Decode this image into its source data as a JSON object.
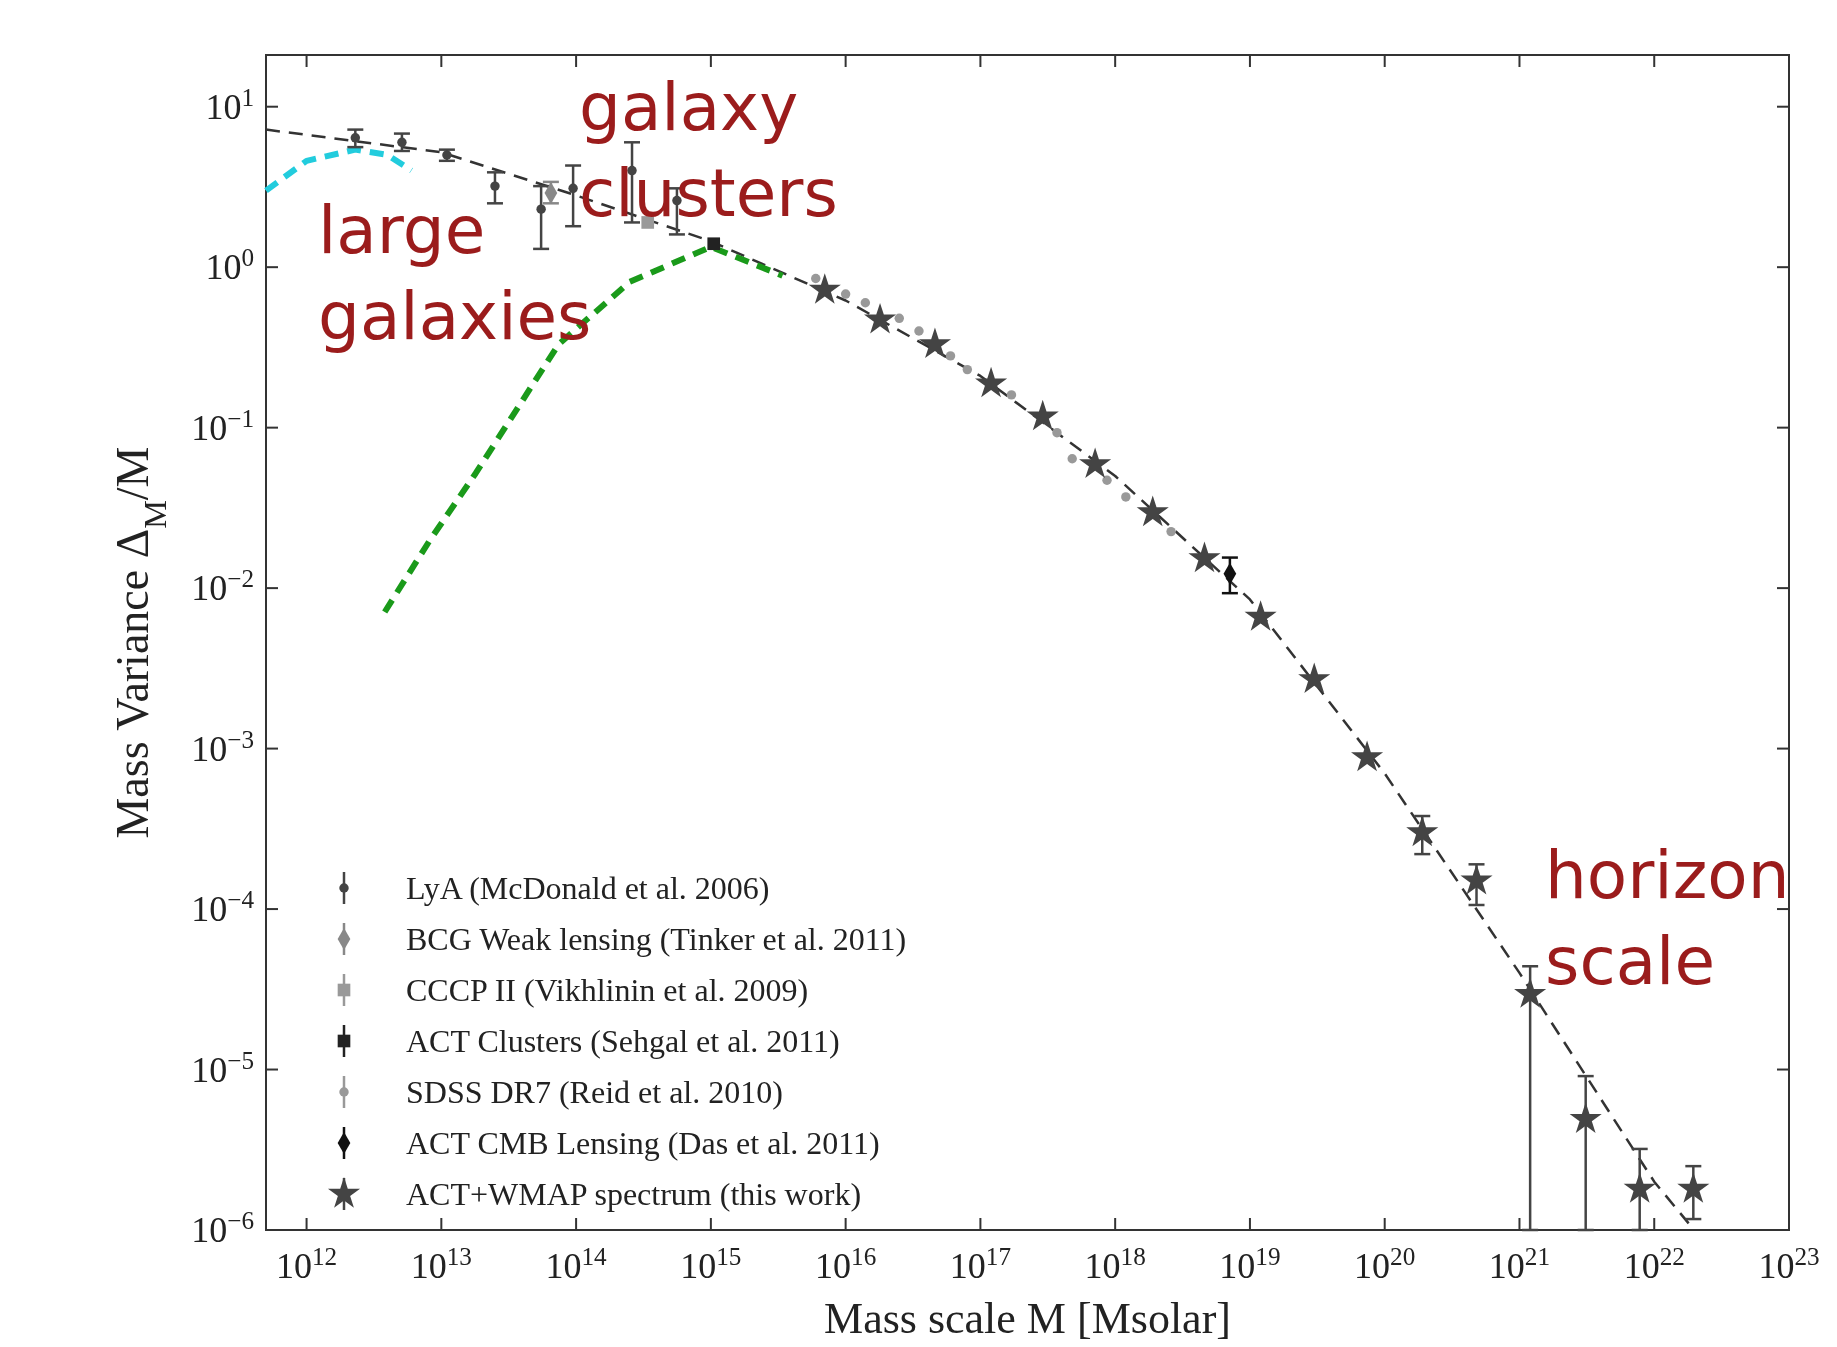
{
  "chart_data": {
    "type": "scatter",
    "xlabel": "Mass scale M [Msolar]",
    "ylabel": "Mass Variance Δ$_{M}$/M",
    "log": "xy",
    "grid": false,
    "legend": "bottom left",
    "xlim": [
      500000000000.0,
      1e+23
    ],
    "ylim": [
      1e-06,
      21
    ],
    "xticks": [
      {
        "value": 1000000000000.0,
        "label": "10$^{12}$"
      },
      {
        "value": 10000000000000.0,
        "label": "10$^{13}$"
      },
      {
        "value": 100000000000000.0,
        "label": "10$^{14}$"
      },
      {
        "value": 1000000000000000.0,
        "label": "10$^{15}$"
      },
      {
        "value": 1e+16,
        "label": "10$^{16}$"
      },
      {
        "value": 1e+17,
        "label": "10$^{17}$"
      },
      {
        "value": 1e+18,
        "label": "10$^{18}$"
      },
      {
        "value": 1e+19,
        "label": "10$^{19}$"
      },
      {
        "value": 1e+20,
        "label": "10$^{20}$"
      },
      {
        "value": 1e+21,
        "label": "10$^{21}$"
      },
      {
        "value": 1e+22,
        "label": "10$^{22}$"
      },
      {
        "value": 1e+23,
        "label": "10$^{23}$"
      }
    ],
    "yticks": [
      {
        "value": 1e-06,
        "label": "10$^{−6}$"
      },
      {
        "value": 1e-05,
        "label": "10$^{−5}$"
      },
      {
        "value": 0.0001,
        "label": "10$^{−4}$"
      },
      {
        "value": 0.001,
        "label": "10$^{−3}$"
      },
      {
        "value": 0.01,
        "label": "10$^{−2}$"
      },
      {
        "value": 0.1,
        "label": "10$^{−1}$"
      },
      {
        "value": 1,
        "label": "10$^{0}$"
      },
      {
        "value": 10,
        "label": "10$^{1}$"
      }
    ],
    "series": [
      {
        "type": "line",
        "color": "#333333",
        "line_style": "dashed",
        "marker": "none",
        "x": [
          500000000000.0,
          10000000000000.0,
          100000000000000.0,
          1000000000000000.0,
          1e+16,
          1e+17,
          1e+18,
          1e+19,
          1e+20,
          1e+21,
          1e+22,
          1.8e+22
        ],
        "values": [
          7.2,
          5.2,
          2.8,
          1.45,
          0.62,
          0.21,
          0.05,
          0.0085,
          0.0007,
          4e-05,
          2e-06,
          1.1e-06
        ]
      },
      {
        "type": "line",
        "color": "#22ccdd",
        "line_style": "dashed",
        "marker": "none",
        "x": [
          500000000000.0,
          1000000000000.0,
          2300000000000.0,
          4000000000000.0,
          6000000000000.0
        ],
        "values": [
          3.0,
          4.6,
          5.4,
          5.0,
          4.0
        ]
      },
      {
        "type": "line",
        "color": "#1a9a1a",
        "line_style": "dashed",
        "marker": "none",
        "x": [
          3800000000000.0,
          8100000000000.0,
          18000000000000.0,
          74000000000000.0,
          250000000000000.0,
          1000000000000000.0,
          3400000000000000.0
        ],
        "values": [
          0.0071,
          0.0195,
          0.052,
          0.33,
          0.81,
          1.34,
          0.885
        ]
      },
      {
        "name": "LyA (McDonald et al. 2006)",
        "color": "#444444",
        "marker": "circle",
        "x": [
          2300000000000.0,
          5100000000000.0,
          11000000000000.0,
          25000000000000.0,
          55000000000000.0,
          95000000000000.0,
          260000000000000.0,
          560000000000000.0
        ],
        "values": [
          6.4,
          6.0,
          5.0,
          3.2,
          2.3,
          3.1,
          4.0,
          2.6
        ],
        "errors": [
          [
            5.6,
            7.2
          ],
          [
            5.3,
            6.8
          ],
          [
            4.6,
            5.4
          ],
          [
            2.5,
            3.9
          ],
          [
            1.3,
            3.2
          ],
          [
            1.8,
            4.3
          ],
          [
            1.9,
            6.0
          ],
          [
            1.6,
            3.1
          ]
        ]
      },
      {
        "name": "BCG Weak lensing (Tinker et al. 2011)",
        "color": "#888888",
        "marker": "diamond",
        "x": [
          65000000000000.0
        ],
        "values": [
          2.9
        ],
        "errors": [
          [
            2.5,
            3.4
          ]
        ]
      },
      {
        "name": "CCCP II (Vikhlinin et al. 2009)",
        "color": "#999999",
        "marker": "square",
        "x": [
          340000000000000.0
        ],
        "values": [
          1.9
        ],
        "errors": [
          null
        ]
      },
      {
        "name": "ACT Clusters (Sehgal et al. 2011)",
        "color": "#222222",
        "marker": "square",
        "x": [
          1050000000000000.0
        ],
        "values": [
          1.4
        ],
        "errors": [
          null
        ]
      },
      {
        "name": "SDSS DR7 (Reid et al. 2010)",
        "color": "#999999",
        "marker": "circle",
        "x": [
          6000000000000000.0,
          1e+16,
          1.4e+16,
          2.5e+16,
          3.5e+16,
          6e+16,
          8e+16,
          1.7e+17,
          3.7e+17,
          4.8e+17,
          8.7e+17,
          1.2e+18,
          2.6e+18
        ],
        "values": [
          0.85,
          0.68,
          0.6,
          0.48,
          0.4,
          0.28,
          0.23,
          0.16,
          0.093,
          0.064,
          0.047,
          0.037,
          0.0225
        ],
        "errors": [
          null,
          null,
          null,
          null,
          null,
          null,
          null,
          null,
          null,
          null,
          null,
          null,
          null
        ]
      },
      {
        "name": "ACT CMB Lensing (Das et al. 2011)",
        "color": "#111111",
        "marker": "diamond",
        "x": [
          7.1e+18
        ],
        "values": [
          0.0123
        ],
        "errors": [
          [
            0.0093,
            0.0155
          ]
        ]
      },
      {
        "name": "ACT+WMAP spectrum (this work)",
        "color": "#444444",
        "marker": "star",
        "x": [
          7000000000000000.0,
          1.8e+16,
          4.6e+16,
          1.2e+17,
          2.9e+17,
          7.1e+17,
          1.9e+18,
          4.6e+18,
          1.2e+19,
          3e+19,
          7.4e+19,
          1.9e+20,
          4.8e+20,
          1.2e+21,
          3.1e+21,
          7.8e+21,
          1.95e+22
        ],
        "values": [
          0.72,
          0.47,
          0.33,
          0.188,
          0.117,
          0.059,
          0.0296,
          0.0153,
          0.0066,
          0.0027,
          0.00088,
          0.0003,
          0.00015,
          2.95e-05,
          4.9e-06,
          1.8e-06,
          1.8e-06
        ],
        "errors": [
          null,
          null,
          null,
          null,
          null,
          null,
          null,
          null,
          null,
          null,
          null,
          [
            0.00022,
            0.00038
          ],
          [
            0.000106,
            0.00019
          ],
          [
            1e-06,
            4.4e-05
          ],
          [
            1e-06,
            9.1e-06
          ],
          [
            1e-06,
            3.2e-06
          ],
          [
            1.17e-06,
            2.5e-06
          ]
        ]
      }
    ],
    "annotations": [
      "galaxy\nclusters",
      "large\ngalaxies",
      "horizon\nscale"
    ]
  }
}
